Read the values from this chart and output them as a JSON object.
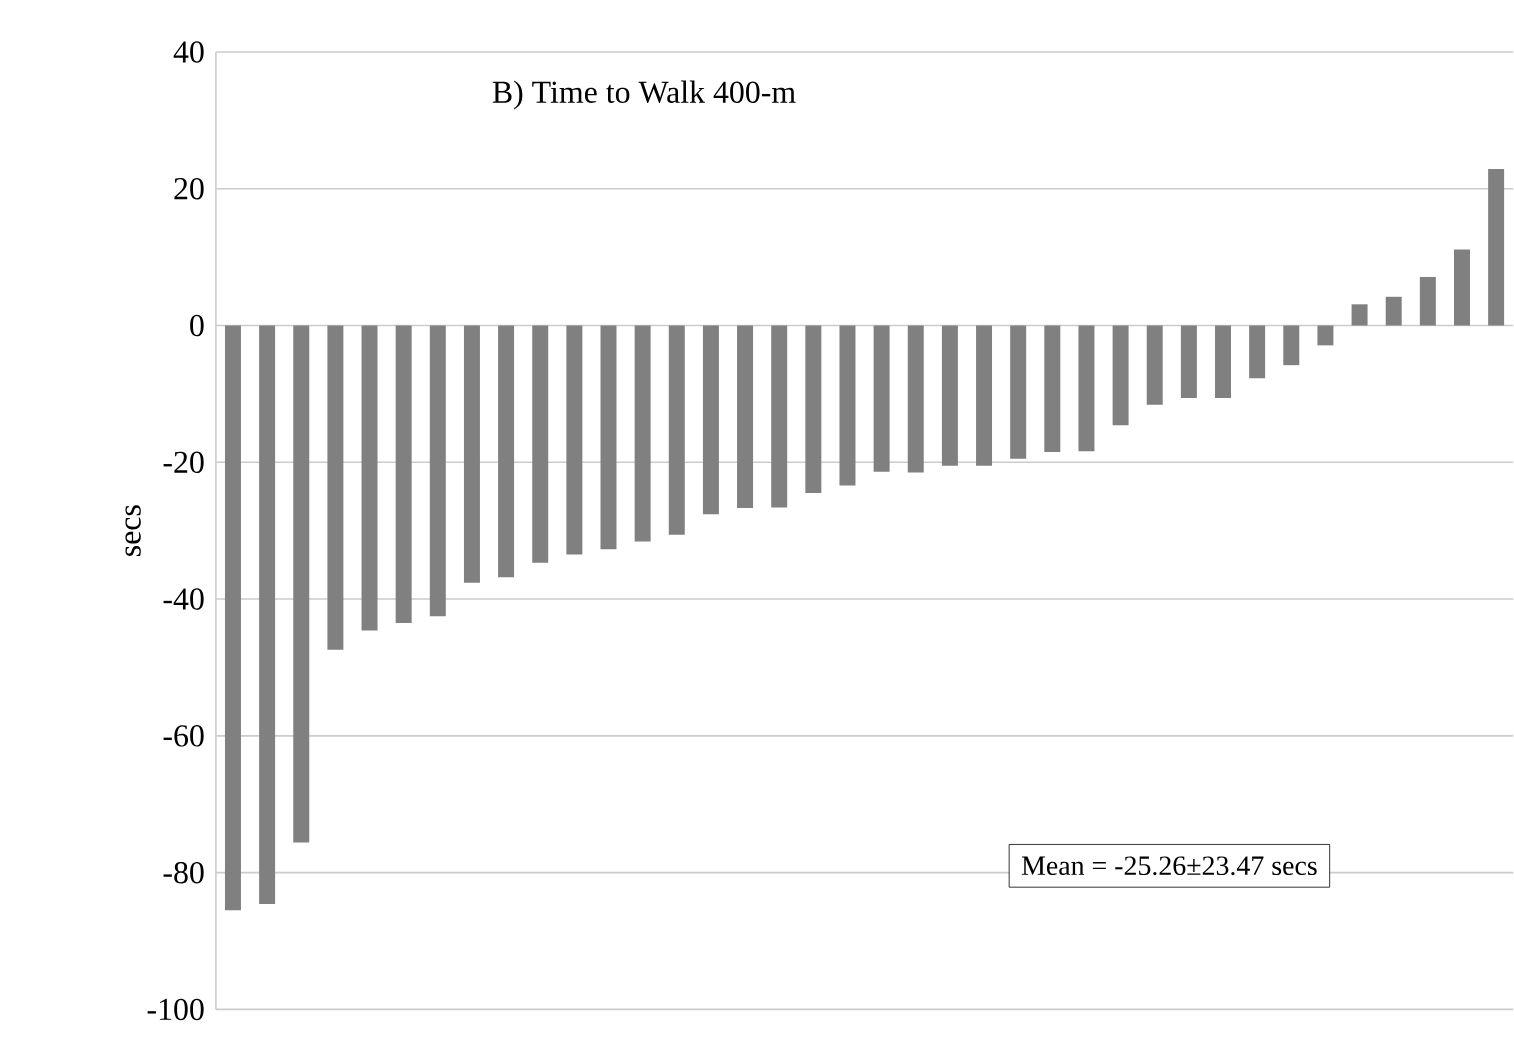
{
  "chart_data": {
    "type": "bar",
    "title": "B) Time to Walk 400-m",
    "ylabel": "secs",
    "categories": [
      null,
      null,
      null,
      null,
      null,
      null,
      null,
      null,
      null,
      null,
      null,
      null,
      null,
      null,
      null,
      null,
      null,
      null,
      null,
      null,
      null,
      null,
      null,
      null,
      null,
      null,
      null,
      null,
      null,
      null,
      null,
      null,
      null,
      null,
      null,
      null,
      null,
      null
    ],
    "values": [
      -85.5,
      -84.6,
      -75.6,
      -47.4,
      -44.6,
      -43.5,
      -42.5,
      -37.6,
      -36.8,
      -34.7,
      -33.5,
      -32.7,
      -31.6,
      -30.6,
      -27.6,
      -26.7,
      -26.6,
      -24.5,
      -23.4,
      -21.4,
      -21.5,
      -20.5,
      -20.5,
      -19.5,
      -18.5,
      -18.4,
      -14.6,
      -11.6,
      -10.6,
      -10.6,
      -7.7,
      -5.8,
      -2.9,
      3.1,
      4.2,
      7.1,
      11.1,
      22.9
    ],
    "color": "#808080",
    "ylim": [
      -100,
      40
    ],
    "yticks": [
      -100,
      -80,
      -60,
      -40,
      -20,
      0,
      20,
      40
    ],
    "grid": "y",
    "annotations": [
      "Mean = -25.26±23.47 secs"
    ]
  }
}
